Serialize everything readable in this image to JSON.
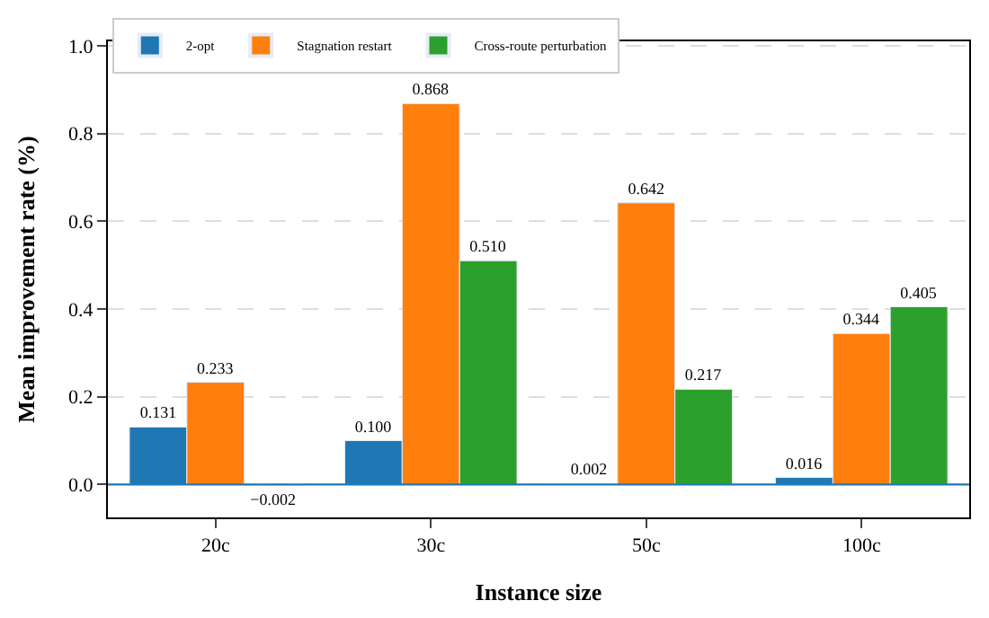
{
  "chart_data": {
    "type": "bar",
    "xlabel": "Instance size",
    "ylabel": "Mean improvement rate (%)",
    "categories": [
      "20c",
      "30c",
      "50c",
      "100c"
    ],
    "series": [
      {
        "name": "2-opt",
        "color": "#1f77b4",
        "values": [
          0.131,
          0.1,
          0.002,
          0.016
        ],
        "value_labels": [
          "0.131",
          "0.100",
          "0.002",
          "0.016"
        ]
      },
      {
        "name": "Stagnation restart",
        "color": "#ff7f0e",
        "values": [
          0.233,
          0.868,
          0.642,
          0.344
        ],
        "value_labels": [
          "0.233",
          "0.868",
          "0.642",
          "0.344"
        ]
      },
      {
        "name": "Cross-route perturbation",
        "color": "#2ca02c",
        "values": [
          -0.002,
          0.51,
          0.217,
          0.405
        ],
        "value_labels": [
          "−0.002",
          "0.510",
          "0.217",
          "0.405"
        ]
      }
    ],
    "ylim": [
      -0.075,
      1.01
    ],
    "yticks": [
      {
        "value": 0,
        "label": "0.0"
      },
      {
        "value": 0.2,
        "label": "0.2"
      },
      {
        "value": 0.4,
        "label": "0.4"
      },
      {
        "value": 0.6,
        "label": "0.6"
      },
      {
        "value": 0.8,
        "label": "0.8"
      },
      {
        "value": 1.0,
        "label": "1.0"
      }
    ],
    "grid": "y",
    "legend": "top left",
    "ref_lines": [
      {
        "axis": "y",
        "value": 0,
        "color": "#1f77b4"
      }
    ]
  }
}
